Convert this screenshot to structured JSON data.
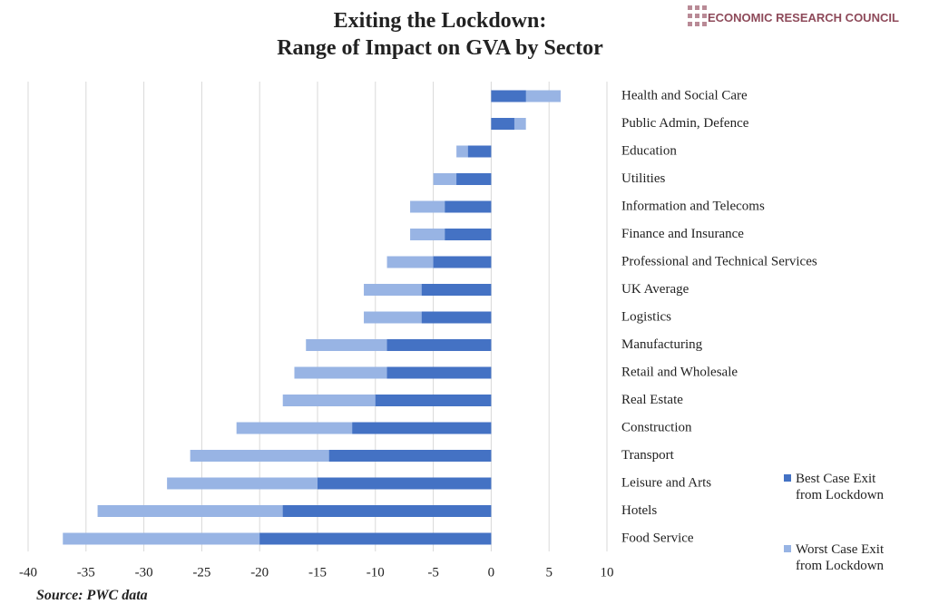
{
  "chart_data": {
    "type": "bar",
    "orientation": "horizontal",
    "overlap": true,
    "title": "Exiting the Lockdown:\nRange of Impact on GVA by Sector",
    "logo": "ECONOMIC RESEARCH COUNCIL",
    "source": "Source: PWC data",
    "categories": [
      "Health and Social Care",
      "Public Admin, Defence",
      "Education",
      "Utilities",
      "Information and Telecoms",
      "Finance and Insurance",
      "Professional and Technical Services",
      "UK Average",
      "Logistics",
      "Manufacturing",
      "Retail and Wholesale",
      "Real Estate",
      "Construction",
      "Transport",
      "Leisure and Arts",
      "Hotels",
      "Food Service"
    ],
    "series": [
      {
        "name": "Best Case Exit\nfrom Lockdown",
        "color": "#4472c4",
        "values": [
          3,
          2,
          -2,
          -3,
          -4,
          -4,
          -5,
          -6,
          -6,
          -9,
          -9,
          -10,
          -12,
          -14,
          -15,
          -18,
          -20
        ]
      },
      {
        "name": "Worst Case Exit\nfrom Lockdown",
        "color": "#98b4e4",
        "values": [
          6,
          3,
          -3,
          -5,
          -7,
          -7,
          -9,
          -11,
          -11,
          -16,
          -17,
          -18,
          -22,
          -26,
          -28,
          -34,
          -37
        ]
      }
    ],
    "xlim": [
      -40,
      10
    ],
    "xticks": [
      -40,
      -35,
      -30,
      -25,
      -20,
      -15,
      -10,
      -5,
      0,
      5,
      10
    ],
    "grid": true,
    "legend": "lower right"
  }
}
